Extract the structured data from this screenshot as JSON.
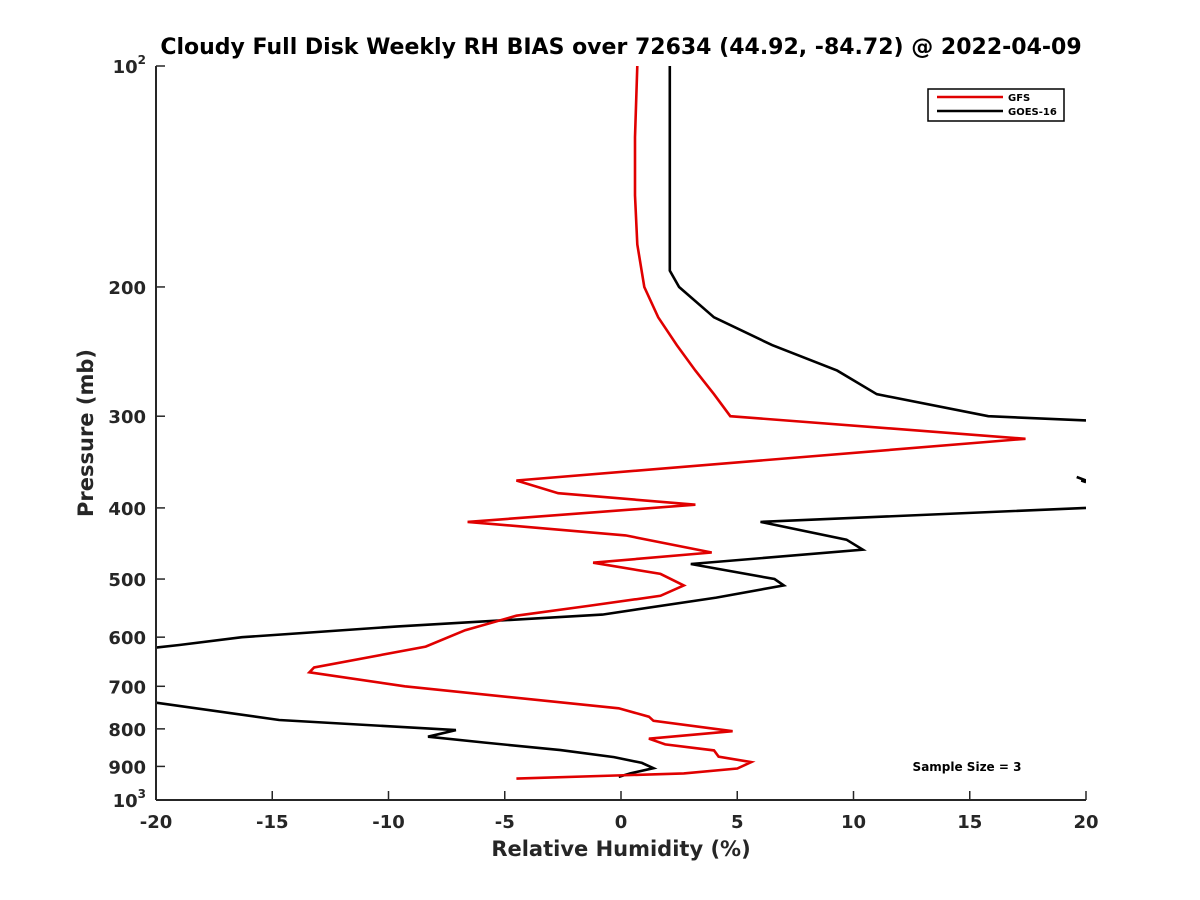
{
  "chart_data": {
    "type": "line",
    "title": "Cloudy Full Disk Weekly RH BIAS over 72634 (44.92, -84.72) @ 2022-04-09",
    "xlabel": "Relative Humidity (%)",
    "ylabel": "Pressure (mb)",
    "xlim": [
      -20,
      20
    ],
    "ylim": [
      100,
      1000
    ],
    "y_scale": "log",
    "y_reversed": true,
    "x_ticks": [
      -20,
      -15,
      -10,
      -5,
      0,
      5,
      10,
      15,
      20
    ],
    "x_tick_labels": [
      "-20",
      "-15",
      "-10",
      "-5",
      "0",
      "5",
      "10",
      "15",
      "20"
    ],
    "y_ticks": [
      {
        "value": 100,
        "base": "10",
        "exp": "2"
      },
      {
        "value": 200,
        "label": "200"
      },
      {
        "value": 300,
        "label": "300"
      },
      {
        "value": 400,
        "label": "400"
      },
      {
        "value": 500,
        "label": "500"
      },
      {
        "value": 600,
        "label": "600"
      },
      {
        "value": 700,
        "label": "700"
      },
      {
        "value": 800,
        "label": "800"
      },
      {
        "value": 900,
        "label": "900"
      },
      {
        "value": 1000,
        "base": "10",
        "exp": "3"
      }
    ],
    "grid": false,
    "legend_position": "top-right",
    "annotation": "Sample Size = 3",
    "series": [
      {
        "name": "GFS",
        "color": "#e00000",
        "points": [
          [
            0.7,
            100
          ],
          [
            0.6,
            125
          ],
          [
            0.6,
            150
          ],
          [
            0.7,
            175
          ],
          [
            1.0,
            200
          ],
          [
            1.6,
            220
          ],
          [
            2.4,
            240
          ],
          [
            3.2,
            260
          ],
          [
            4.0,
            280
          ],
          [
            4.7,
            300
          ],
          [
            17.4,
            322
          ],
          [
            -4.5,
            367
          ],
          [
            -2.7,
            382
          ],
          [
            3.2,
            396
          ],
          [
            -6.6,
            418
          ],
          [
            0.2,
            436
          ],
          [
            3.9,
            460
          ],
          [
            -1.2,
            475
          ],
          [
            1.7,
            492
          ],
          [
            2.7,
            510
          ],
          [
            1.7,
            527
          ],
          [
            -1.4,
            544
          ],
          [
            -4.5,
            561
          ],
          [
            -6.7,
            587
          ],
          [
            -8.4,
            618
          ],
          [
            -13.2,
            660
          ],
          [
            -13.4,
            670
          ],
          [
            -9.3,
            700
          ],
          [
            -0.1,
            750
          ],
          [
            1.2,
            770
          ],
          [
            1.4,
            780
          ],
          [
            4.8,
            806
          ],
          [
            1.2,
            825
          ],
          [
            1.9,
            840
          ],
          [
            4.0,
            856
          ],
          [
            4.2,
            873
          ],
          [
            5.6,
            888
          ],
          [
            5.0,
            906
          ],
          [
            2.7,
            920
          ],
          [
            -4.5,
            935
          ]
        ]
      },
      {
        "name": "GOES-16",
        "color": "#000000",
        "points": [
          [
            2.1,
            100
          ],
          [
            2.1,
            125
          ],
          [
            2.1,
            150
          ],
          [
            2.1,
            175
          ],
          [
            2.1,
            190
          ],
          [
            2.5,
            200
          ],
          [
            4.0,
            220
          ],
          [
            6.5,
            240
          ],
          [
            9.3,
            260
          ],
          [
            11.0,
            280
          ],
          [
            15.8,
            300
          ],
          [
            20.0,
            304
          ]
        ],
        "extra_segments": [
          [
            [
              19.6,
              363
            ],
            [
              20.0,
              367
            ],
            [
              19.8,
              367
            ],
            [
              20.0,
              369
            ]
          ],
          [
            [
              20.0,
              400
            ],
            [
              6.0,
              418
            ],
            [
              9.7,
              442
            ],
            [
              10.4,
              456
            ],
            [
              3.0,
              477
            ],
            [
              6.6,
              500
            ],
            [
              7.0,
              510
            ],
            [
              4.1,
              530
            ],
            [
              -0.8,
              559
            ],
            [
              -9.6,
              580
            ],
            [
              -16.3,
              600
            ],
            [
              -19.0,
              615
            ],
            [
              -20.0,
              620
            ]
          ],
          [
            [
              -20.0,
              737
            ],
            [
              -14.7,
              778
            ],
            [
              -7.1,
              803
            ],
            [
              -8.3,
              820
            ],
            [
              -5.9,
              835
            ],
            [
              -2.6,
              855
            ],
            [
              -0.3,
              874
            ],
            [
              0.9,
              890
            ],
            [
              1.4,
              905
            ],
            [
              0.4,
              920
            ],
            [
              -0.1,
              930
            ]
          ]
        ]
      }
    ]
  }
}
